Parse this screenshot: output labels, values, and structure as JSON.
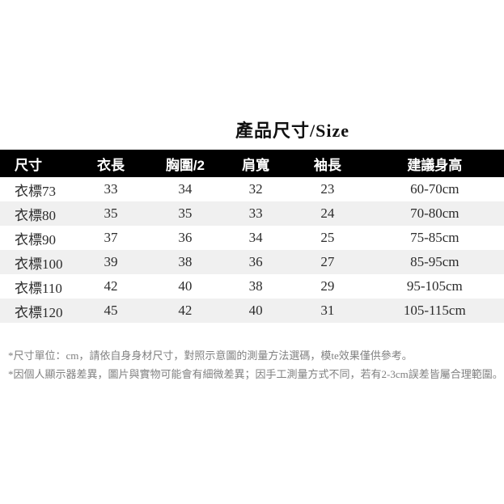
{
  "title": "產品尺寸/Size",
  "chart_data": {
    "type": "table",
    "title": "產品尺寸/Size",
    "columns": [
      "尺寸",
      "衣長",
      "胸圍/2",
      "肩寬",
      "袖長",
      "建議身高"
    ],
    "rows": [
      [
        "衣標73",
        "33",
        "34",
        "32",
        "23",
        "60-70cm"
      ],
      [
        "衣標80",
        "35",
        "35",
        "33",
        "24",
        "70-80cm"
      ],
      [
        "衣標90",
        "37",
        "36",
        "34",
        "25",
        "75-85cm"
      ],
      [
        "衣標100",
        "39",
        "38",
        "36",
        "27",
        "85-95cm"
      ],
      [
        "衣標110",
        "42",
        "40",
        "38",
        "29",
        "95-105cm"
      ],
      [
        "衣標120",
        "45",
        "42",
        "40",
        "31",
        "105-115cm"
      ]
    ],
    "notes": [
      "*尺寸單位：cm，請依自身身材尺寸，對照示意圖的測量方法選碼，模te效果僅供參考。",
      "*因個人顯示器差異，圖片與實物可能會有細微差異；因手工測量方式不同，若有2-3cm誤差皆屬合理範圍。"
    ],
    "unit": "cm"
  },
  "colors": {
    "header_bg": "#000000",
    "header_text": "#ffffff",
    "row_alt_bg": "#f0f0f0",
    "body_text": "#2b2b2b",
    "footnote_text": "#808080"
  }
}
